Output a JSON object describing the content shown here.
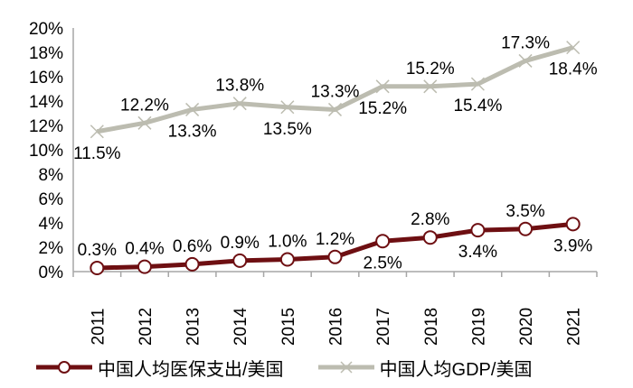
{
  "chart_data": {
    "type": "line",
    "title": "",
    "xlabel": "",
    "ylabel": "",
    "categories": [
      "2011",
      "2012",
      "2013",
      "2014",
      "2015",
      "2016",
      "2017",
      "2018",
      "2019",
      "2020",
      "2021"
    ],
    "ylim": [
      0,
      20
    ],
    "yticks": [
      "0%",
      "2%",
      "4%",
      "6%",
      "8%",
      "10%",
      "12%",
      "14%",
      "16%",
      "18%",
      "20%"
    ],
    "grid": false,
    "legend_position": "bottom",
    "series": [
      {
        "name": "中国人均医保支出/美国",
        "color": "#6e0f12",
        "marker": "circle-open",
        "values": [
          0.3,
          0.4,
          0.6,
          0.9,
          1.0,
          1.2,
          2.5,
          2.8,
          3.4,
          3.5,
          3.9
        ],
        "labels": [
          "0.3%",
          "0.4%",
          "0.6%",
          "0.9%",
          "1.0%",
          "1.2%",
          "2.5%",
          "2.8%",
          "3.4%",
          "3.5%",
          "3.9%"
        ],
        "label_pos": [
          "above",
          "above",
          "above",
          "above",
          "above",
          "above",
          "below",
          "above",
          "below",
          "above",
          "below"
        ]
      },
      {
        "name": "中国人均GDP/美国",
        "color": "#bcbcb0",
        "marker": "x",
        "values": [
          11.5,
          12.2,
          13.3,
          13.8,
          13.5,
          13.3,
          15.2,
          15.2,
          15.4,
          17.3,
          18.4
        ],
        "labels": [
          "11.5%",
          "12.2%",
          "13.3%",
          "13.8%",
          "13.5%",
          "13.3%",
          "15.2%",
          "15.2%",
          "15.4%",
          "17.3%",
          "18.4%"
        ],
        "label_pos": [
          "below",
          "above",
          "below",
          "above",
          "below",
          "above",
          "below",
          "above",
          "below",
          "above",
          "below"
        ]
      }
    ]
  },
  "legend": {
    "items": [
      {
        "label": "中国人均医保支出/美国"
      },
      {
        "label": "中国人均GDP/美国"
      }
    ]
  }
}
